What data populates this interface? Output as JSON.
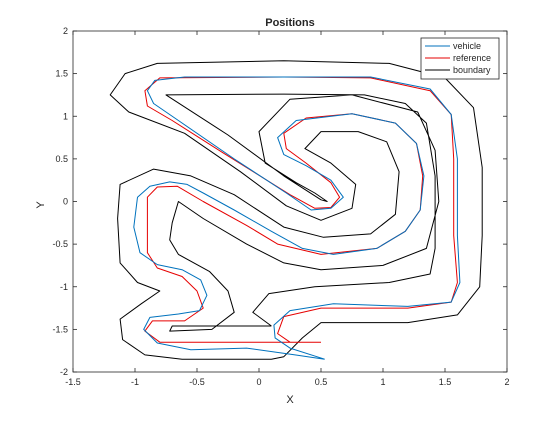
{
  "chart_data": {
    "type": "line",
    "title": "Positions",
    "xlabel": "X",
    "ylabel": "Y",
    "xlim": [
      -1.5,
      2
    ],
    "ylim": [
      -2,
      2
    ],
    "xticks": [
      "-1.5",
      "-1",
      "-0.5",
      "0",
      "0.5",
      "1",
      "1.5",
      "2"
    ],
    "yticks": [
      "-2",
      "-1.5",
      "-1",
      "-0.5",
      "0",
      "0.5",
      "1",
      "1.5",
      "2"
    ],
    "grid": false,
    "legend_position": "top-right",
    "series": [
      {
        "name": "vehicle",
        "color": "#0072bd",
        "paths": [
          [
            [
              0.53,
              -1.85
            ],
            [
              0.29,
              -1.8
            ],
            [
              -0.1,
              -1.72
            ],
            [
              -0.55,
              -1.74
            ],
            [
              -0.82,
              -1.66
            ],
            [
              -0.93,
              -1.5
            ],
            [
              -0.88,
              -1.36
            ],
            [
              -0.65,
              -1.32
            ],
            [
              -0.48,
              -1.28
            ],
            [
              -0.42,
              -1.1
            ],
            [
              -0.47,
              -0.92
            ],
            [
              -0.62,
              -0.8
            ],
            [
              -0.82,
              -0.74
            ],
            [
              -0.96,
              -0.6
            ],
            [
              -1.01,
              -0.3
            ],
            [
              -0.98,
              0.05
            ],
            [
              -0.88,
              0.18
            ],
            [
              -0.72,
              0.23
            ],
            [
              -0.58,
              0.2
            ],
            [
              -0.45,
              0.1
            ],
            [
              -0.2,
              -0.1
            ],
            [
              0.1,
              -0.35
            ],
            [
              0.35,
              -0.55
            ],
            [
              0.6,
              -0.62
            ],
            [
              0.95,
              -0.55
            ],
            [
              1.18,
              -0.35
            ],
            [
              1.3,
              -0.1
            ],
            [
              1.33,
              0.3
            ],
            [
              1.27,
              0.68
            ],
            [
              1.1,
              0.92
            ],
            [
              0.75,
              1.03
            ],
            [
              0.3,
              0.95
            ],
            [
              0.15,
              0.75
            ],
            [
              0.2,
              0.55
            ],
            [
              0.38,
              0.42
            ],
            [
              0.58,
              0.25
            ],
            [
              0.68,
              0.05
            ],
            [
              0.58,
              -0.08
            ],
            [
              0.42,
              -0.1
            ],
            [
              0.22,
              0.1
            ],
            [
              -0.2,
              0.5
            ],
            [
              -0.65,
              0.95
            ],
            [
              -0.85,
              1.15
            ],
            [
              -0.9,
              1.3
            ],
            [
              -0.84,
              1.42
            ],
            [
              -0.6,
              1.46
            ],
            [
              0.2,
              1.46
            ],
            [
              0.9,
              1.46
            ],
            [
              1.38,
              1.32
            ],
            [
              1.55,
              1.02
            ],
            [
              1.6,
              0.5
            ],
            [
              1.6,
              -0.4
            ],
            [
              1.62,
              -0.95
            ],
            [
              1.55,
              -1.18
            ],
            [
              1.2,
              -1.23
            ],
            [
              0.6,
              -1.2
            ],
            [
              0.25,
              -1.28
            ],
            [
              0.12,
              -1.45
            ],
            [
              0.13,
              -1.6
            ],
            [
              0.25,
              -1.72
            ],
            [
              0.53,
              -1.85
            ]
          ]
        ]
      },
      {
        "name": "reference",
        "color": "#e60000",
        "paths": [
          [
            [
              0.5,
              -1.65
            ],
            [
              -0.8,
              -1.65
            ],
            [
              -0.92,
              -1.52
            ],
            [
              -0.86,
              -1.4
            ],
            [
              -0.6,
              -1.4
            ],
            [
              -0.45,
              -1.25
            ],
            [
              -0.5,
              -1.05
            ],
            [
              -0.62,
              -0.88
            ],
            [
              -0.82,
              -0.78
            ],
            [
              -0.9,
              -0.6
            ],
            [
              -0.9,
              0.05
            ],
            [
              -0.82,
              0.17
            ],
            [
              -0.66,
              0.18
            ],
            [
              -0.45,
              0.0
            ],
            [
              -0.1,
              -0.28
            ],
            [
              0.15,
              -0.5
            ],
            [
              0.5,
              -0.62
            ],
            [
              0.95,
              -0.55
            ],
            [
              1.18,
              -0.35
            ],
            [
              1.3,
              -0.1
            ],
            [
              1.32,
              0.3
            ],
            [
              1.27,
              0.68
            ],
            [
              1.1,
              0.92
            ],
            [
              0.75,
              1.03
            ],
            [
              0.38,
              0.98
            ],
            [
              0.2,
              0.8
            ],
            [
              0.22,
              0.62
            ],
            [
              0.38,
              0.45
            ],
            [
              0.58,
              0.22
            ],
            [
              0.65,
              0.05
            ],
            [
              0.58,
              -0.07
            ],
            [
              0.45,
              -0.08
            ],
            [
              0.25,
              0.08
            ],
            [
              -0.3,
              0.58
            ],
            [
              -0.7,
              0.95
            ],
            [
              -0.9,
              1.12
            ],
            [
              -0.92,
              1.3
            ],
            [
              -0.8,
              1.45
            ],
            [
              0.2,
              1.46
            ],
            [
              0.9,
              1.45
            ],
            [
              1.38,
              1.3
            ],
            [
              1.55,
              1.02
            ],
            [
              1.57,
              0.5
            ],
            [
              1.57,
              -0.4
            ],
            [
              1.6,
              -0.95
            ],
            [
              1.55,
              -1.18
            ],
            [
              1.2,
              -1.25
            ],
            [
              0.5,
              -1.25
            ],
            [
              0.2,
              -1.35
            ],
            [
              0.15,
              -1.55
            ],
            [
              0.25,
              -1.65
            ],
            [
              0.5,
              -1.65
            ]
          ]
        ]
      },
      {
        "name": "boundary",
        "color": "#000000",
        "paths": [
          [
            [
              0.1,
              -1.85
            ],
            [
              -0.62,
              -1.85
            ],
            [
              -0.92,
              -1.8
            ],
            [
              -1.1,
              -1.62
            ],
            [
              -1.12,
              -1.38
            ],
            [
              -0.95,
              -1.2
            ],
            [
              -0.8,
              -1.05
            ],
            [
              -0.98,
              -0.95
            ],
            [
              -1.12,
              -0.72
            ],
            [
              -1.14,
              -0.2
            ],
            [
              -1.12,
              0.2
            ],
            [
              -0.85,
              0.38
            ],
            [
              -0.55,
              0.3
            ],
            [
              -0.2,
              0.08
            ],
            [
              0.2,
              -0.3
            ],
            [
              0.52,
              -0.42
            ],
            [
              0.9,
              -0.38
            ],
            [
              1.1,
              -0.15
            ],
            [
              1.13,
              0.35
            ],
            [
              1.03,
              0.7
            ],
            [
              0.8,
              0.82
            ],
            [
              0.5,
              0.82
            ],
            [
              0.37,
              0.62
            ],
            [
              0.58,
              0.45
            ],
            [
              0.78,
              0.2
            ],
            [
              0.75,
              -0.08
            ],
            [
              0.5,
              -0.22
            ],
            [
              0.22,
              -0.05
            ],
            [
              -0.15,
              0.35
            ],
            [
              -0.6,
              0.8
            ],
            [
              -1.05,
              1.05
            ],
            [
              -1.2,
              1.25
            ],
            [
              -1.08,
              1.5
            ],
            [
              -0.82,
              1.62
            ],
            [
              0.2,
              1.65
            ],
            [
              1.05,
              1.62
            ],
            [
              1.5,
              1.45
            ],
            [
              1.73,
              1.1
            ],
            [
              1.8,
              0.4
            ],
            [
              1.8,
              -0.4
            ],
            [
              1.78,
              -1.0
            ],
            [
              1.6,
              -1.33
            ],
            [
              1.2,
              -1.42
            ],
            [
              0.5,
              -1.42
            ],
            [
              0.35,
              -1.6
            ],
            [
              0.2,
              -1.82
            ],
            [
              0.1,
              -1.85
            ]
          ],
          [
            [
              0.1,
              -1.46
            ],
            [
              -0.7,
              -1.46
            ],
            [
              -0.72,
              -1.52
            ],
            [
              -0.38,
              -1.5
            ],
            [
              -0.2,
              -1.3
            ],
            [
              -0.25,
              -1.05
            ],
            [
              -0.4,
              -0.82
            ],
            [
              -0.65,
              -0.62
            ],
            [
              -0.72,
              -0.45
            ],
            [
              -0.7,
              -0.25
            ],
            [
              -0.65,
              0.0
            ],
            [
              -0.45,
              -0.2
            ],
            [
              -0.1,
              -0.5
            ],
            [
              0.2,
              -0.72
            ],
            [
              0.5,
              -0.8
            ],
            [
              1.0,
              -0.75
            ],
            [
              1.35,
              -0.55
            ],
            [
              1.45,
              0.0
            ],
            [
              1.42,
              0.6
            ],
            [
              1.28,
              1.05
            ],
            [
              0.75,
              1.25
            ],
            [
              0.25,
              1.2
            ],
            [
              0.0,
              0.82
            ],
            [
              0.05,
              0.45
            ],
            [
              0.3,
              0.22
            ],
            [
              0.45,
              0.1
            ],
            [
              0.55,
              0.0
            ],
            [
              0.5,
              0.02
            ],
            [
              0.2,
              0.3
            ],
            [
              -0.25,
              0.78
            ],
            [
              -0.75,
              1.25
            ],
            [
              0.2,
              1.26
            ],
            [
              0.85,
              1.25
            ],
            [
              1.18,
              1.15
            ],
            [
              1.35,
              0.92
            ],
            [
              1.42,
              0.3
            ],
            [
              1.42,
              -0.55
            ],
            [
              1.38,
              -0.85
            ],
            [
              1.05,
              -0.95
            ],
            [
              0.45,
              -1.0
            ],
            [
              0.08,
              -1.08
            ],
            [
              -0.05,
              -1.3
            ],
            [
              0.1,
              -1.46
            ]
          ]
        ]
      }
    ]
  }
}
